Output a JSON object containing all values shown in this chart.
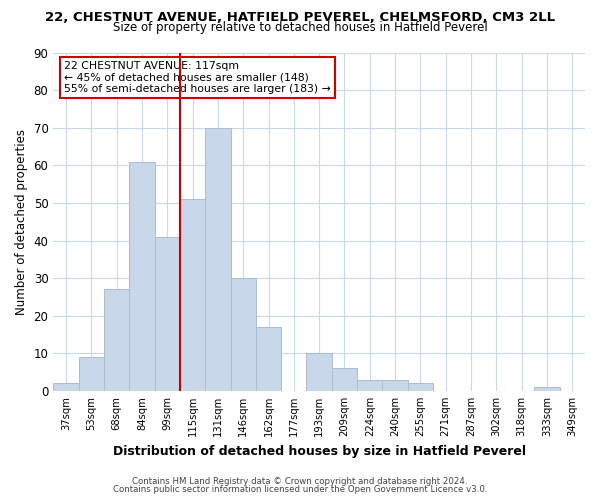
{
  "title": "22, CHESTNUT AVENUE, HATFIELD PEVEREL, CHELMSFORD, CM3 2LL",
  "subtitle": "Size of property relative to detached houses in Hatfield Peverel",
  "xlabel": "Distribution of detached houses by size in Hatfield Peverel",
  "ylabel": "Number of detached properties",
  "bar_labels": [
    "37sqm",
    "53sqm",
    "68sqm",
    "84sqm",
    "99sqm",
    "115sqm",
    "131sqm",
    "146sqm",
    "162sqm",
    "177sqm",
    "193sqm",
    "209sqm",
    "224sqm",
    "240sqm",
    "255sqm",
    "271sqm",
    "287sqm",
    "302sqm",
    "318sqm",
    "333sqm",
    "349sqm"
  ],
  "bar_values": [
    2,
    9,
    27,
    61,
    41,
    51,
    70,
    30,
    17,
    0,
    10,
    6,
    3,
    3,
    2,
    0,
    0,
    0,
    0,
    1,
    0
  ],
  "bar_color": "#c8d8ea",
  "bar_edge_color": "#aabece",
  "ylim": [
    0,
    90
  ],
  "yticks": [
    0,
    10,
    20,
    30,
    40,
    50,
    60,
    70,
    80,
    90
  ],
  "vline_x_index": 5,
  "vline_color": "#cc0000",
  "annotation_title": "22 CHESTNUT AVENUE: 117sqm",
  "annotation_line1": "← 45% of detached houses are smaller (148)",
  "annotation_line2": "55% of semi-detached houses are larger (183) →",
  "annotation_box_color": "#ffffff",
  "annotation_box_edge": "#cc0000",
  "footer1": "Contains HM Land Registry data © Crown copyright and database right 2024.",
  "footer2": "Contains public sector information licensed under the Open Government Licence v3.0.",
  "background_color": "#ffffff",
  "grid_color": "#c8d8e8"
}
